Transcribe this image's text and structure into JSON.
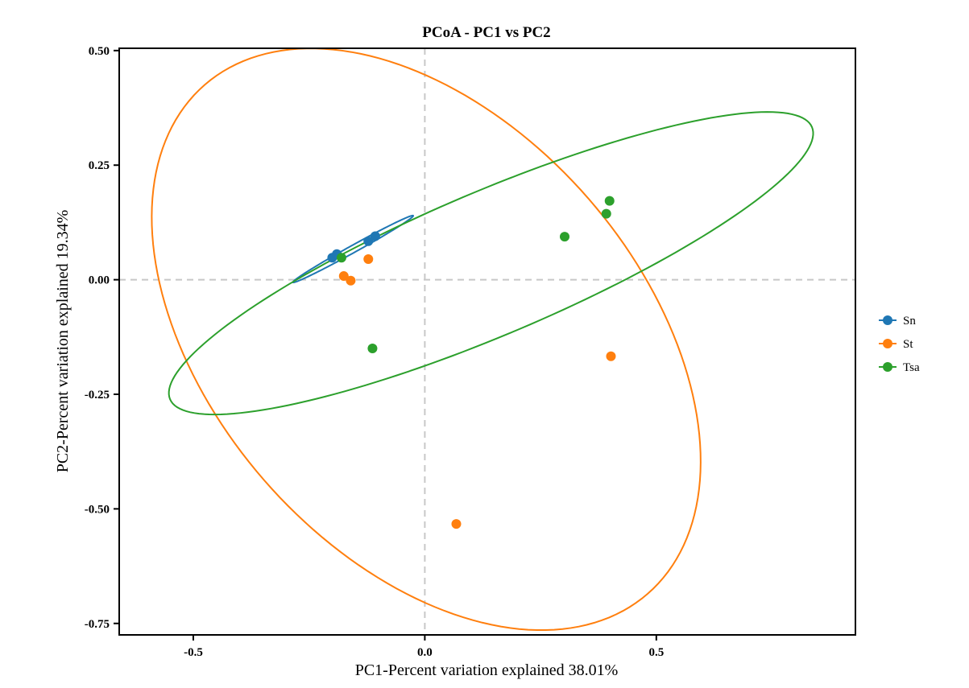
{
  "chart_data": {
    "type": "scatter",
    "title": "PCoA - PC1 vs PC2",
    "xlabel": "PC1-Percent variation explained 38.01%",
    "ylabel": "PC2-Percent variation explained 19.34%",
    "xlim": [
      -0.66,
      0.93
    ],
    "ylim": [
      -0.775,
      0.505
    ],
    "x_ticks": [
      -0.5,
      0.0,
      0.5
    ],
    "x_tick_labels": [
      "-0.5",
      "0.0",
      "0.5"
    ],
    "y_ticks": [
      0.5,
      0.25,
      0.0,
      -0.25,
      -0.5,
      -0.75
    ],
    "y_tick_labels": [
      "0.50",
      "0.25",
      "0.00",
      "-0.25",
      "-0.50",
      "-0.75"
    ],
    "reference_lines": {
      "x": 0,
      "y": 0,
      "style": "dashed"
    },
    "grid": false,
    "legend_position": "right",
    "series": [
      {
        "name": "Sn",
        "color": "#1f77b4",
        "points": [
          [
            -0.2,
            0.048
          ],
          [
            -0.19,
            0.056
          ],
          [
            -0.122,
            0.084
          ],
          [
            -0.107,
            0.095
          ]
        ],
        "ellipse": {
          "center": [
            -0.155,
            0.067
          ],
          "rx": 0.1485,
          "ry": 0.0078,
          "angle_deg": 29.0
        }
      },
      {
        "name": "St",
        "color": "#ff7f0e",
        "points": [
          [
            -0.175,
            0.008
          ],
          [
            -0.16,
            -0.002
          ],
          [
            -0.122,
            0.045
          ],
          [
            0.068,
            -0.533
          ],
          [
            0.402,
            -0.167
          ]
        ],
        "ellipse": {
          "center": [
            0.003,
            -0.13
          ],
          "rx": 0.729,
          "ry": 0.464,
          "angle_deg": -49.0
        }
      },
      {
        "name": "Tsa",
        "color": "#2ca02c",
        "points": [
          [
            -0.18,
            0.048
          ],
          [
            -0.113,
            -0.15
          ],
          [
            0.302,
            0.094
          ],
          [
            0.392,
            0.144
          ],
          [
            0.399,
            0.172
          ]
        ],
        "ellipse": {
          "center": [
            0.143,
            0.036
          ],
          "rx": 0.753,
          "ry": 0.155,
          "angle_deg": 23.0
        }
      }
    ]
  }
}
